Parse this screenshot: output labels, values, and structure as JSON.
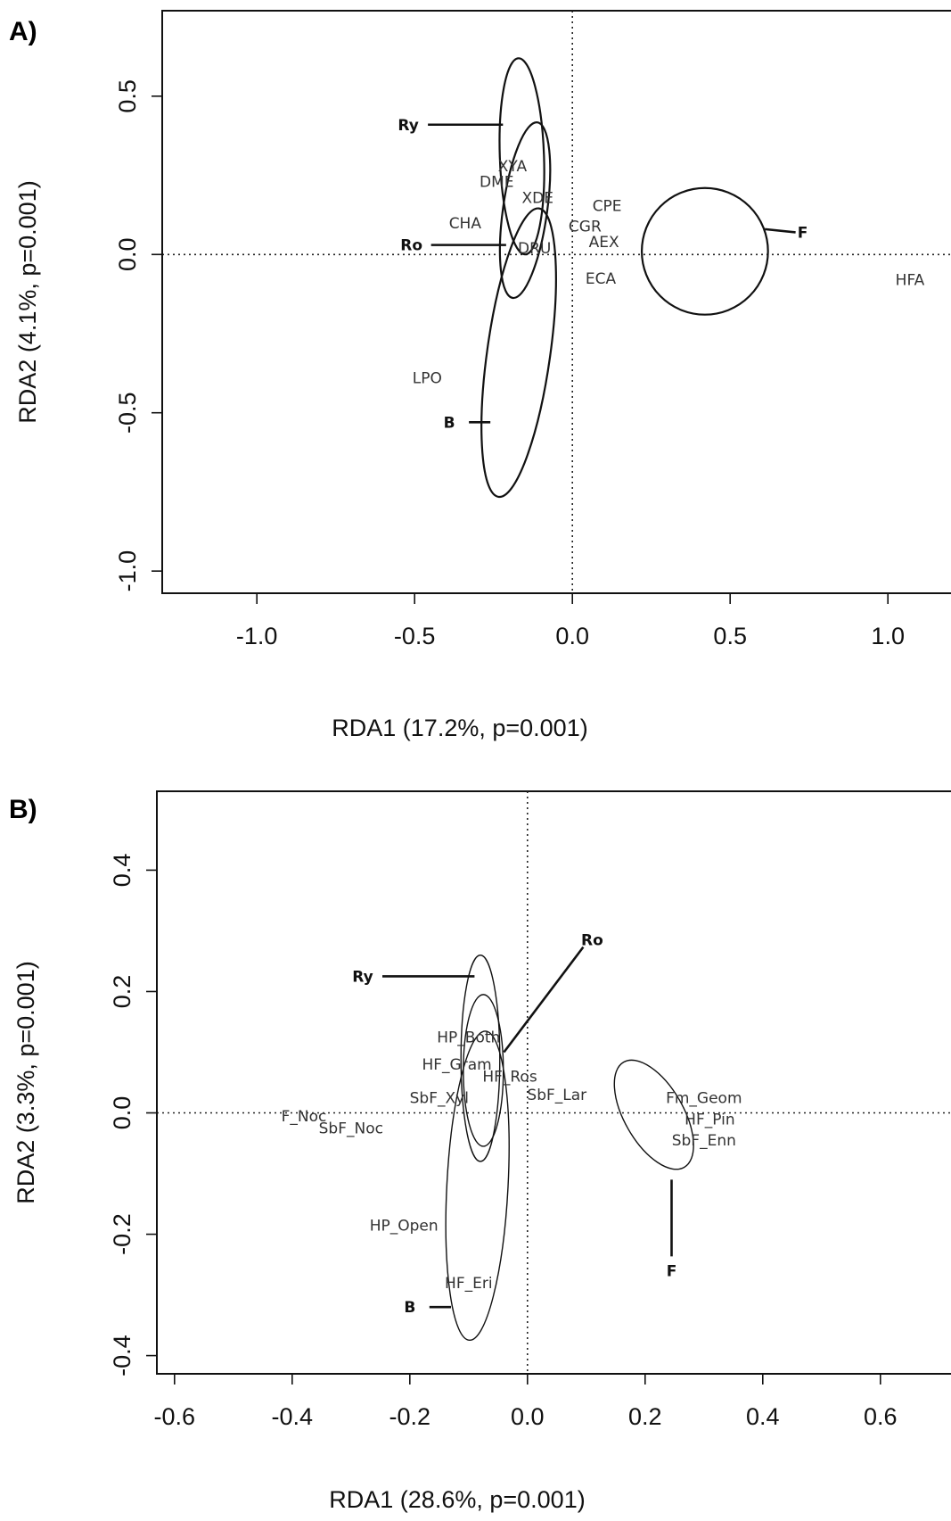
{
  "chart_data": [
    {
      "type": "scatter",
      "panel_label": "A)",
      "xlabel": "RDA1 (17.2%, p=0.001)",
      "ylabel": "RDA2 (4.1%, p=0.001)",
      "xlim": [
        -1.3,
        1.2
      ],
      "ylim": [
        -1.07,
        0.77
      ],
      "xticks": [
        -1.0,
        -0.5,
        0.0,
        0.5,
        1.0
      ],
      "xtick_labels": [
        "-1.0",
        "-0.5",
        "0.0",
        "0.5",
        "1.0"
      ],
      "yticks": [
        -1.0,
        -0.5,
        0.0,
        0.5
      ],
      "ytick_labels": [
        "-1.0",
        "-0.5",
        "0.0",
        "0.5"
      ],
      "reference_lines": {
        "x": 0,
        "y": 0,
        "style": "dotted"
      },
      "species": [
        {
          "label": "XYA",
          "x": -0.19,
          "y": 0.28
        },
        {
          "label": "DME",
          "x": -0.24,
          "y": 0.23
        },
        {
          "label": "XDE",
          "x": -0.11,
          "y": 0.18
        },
        {
          "label": "CPE",
          "x": 0.11,
          "y": 0.155
        },
        {
          "label": "CHA",
          "x": -0.34,
          "y": 0.1
        },
        {
          "label": "CGR",
          "x": 0.04,
          "y": 0.09
        },
        {
          "label": "AEX",
          "x": 0.1,
          "y": 0.04
        },
        {
          "label": "DRU",
          "x": -0.12,
          "y": 0.02
        },
        {
          "label": "ECA",
          "x": 0.09,
          "y": -0.075
        },
        {
          "label": "HFA",
          "x": 1.07,
          "y": -0.08
        },
        {
          "label": "LPO",
          "x": -0.46,
          "y": -0.39
        }
      ],
      "groups": [
        {
          "label": "Ry",
          "center": [
            -0.16,
            0.31
          ],
          "rx": 0.07,
          "ry": 0.31,
          "rotation": -2,
          "label_pos": [
            -0.52,
            0.41
          ],
          "line_end": [
            -0.22,
            0.41
          ]
        },
        {
          "label": "Ro",
          "center": [
            -0.15,
            0.14
          ],
          "rx": 0.07,
          "ry": 0.28,
          "rotation": 8,
          "label_pos": [
            -0.51,
            0.03
          ],
          "line_end": [
            -0.21,
            0.03
          ]
        },
        {
          "label": "B",
          "center": [
            -0.17,
            -0.31
          ],
          "rx": 0.1,
          "ry": 0.46,
          "rotation": 8,
          "label_pos": [
            -0.39,
            -0.53
          ],
          "line_end": [
            -0.26,
            -0.53
          ]
        },
        {
          "label": "F",
          "center": [
            0.42,
            0.01
          ],
          "rx": 0.2,
          "ry": 0.2,
          "rotation": 0,
          "label_pos": [
            0.73,
            0.07
          ],
          "line_end": [
            0.61,
            0.08
          ]
        }
      ]
    },
    {
      "type": "scatter",
      "panel_label": "B)",
      "xlabel": "RDA1 (28.6%, p=0.001)",
      "ylabel": "RDA2 (3.3%, p=0.001)",
      "xlim": [
        -0.63,
        0.72
      ],
      "ylim": [
        -0.43,
        0.53
      ],
      "xticks": [
        -0.6,
        -0.4,
        -0.2,
        0.0,
        0.2,
        0.4,
        0.6
      ],
      "xtick_labels": [
        "-0.6",
        "-0.4",
        "-0.2",
        "0.0",
        "0.2",
        "0.4",
        "0.6"
      ],
      "yticks": [
        -0.4,
        -0.2,
        0.0,
        0.2,
        0.4
      ],
      "ytick_labels": [
        "-0.4",
        "-0.2",
        "0.0",
        "0.2",
        "0.4"
      ],
      "reference_lines": {
        "x": 0,
        "y": 0,
        "style": "dotted"
      },
      "species": [
        {
          "label": "HP_Both",
          "x": -0.1,
          "y": 0.125
        },
        {
          "label": "HF_Gram",
          "x": -0.12,
          "y": 0.08
        },
        {
          "label": "HF_Ros",
          "x": -0.03,
          "y": 0.06
        },
        {
          "label": "SbF_Xyl",
          "x": -0.15,
          "y": 0.025
        },
        {
          "label": "SbF_Lar",
          "x": 0.05,
          "y": 0.03
        },
        {
          "label": "Fm_Geom",
          "x": 0.3,
          "y": 0.025
        },
        {
          "label": "F_Noc",
          "x": -0.38,
          "y": -0.005
        },
        {
          "label": "SbF_Noc",
          "x": -0.3,
          "y": -0.025
        },
        {
          "label": "HF_Pin",
          "x": 0.31,
          "y": -0.01
        },
        {
          "label": "SbF_Enn",
          "x": 0.3,
          "y": -0.045
        },
        {
          "label": "HP_Open",
          "x": -0.21,
          "y": -0.185
        },
        {
          "label": "HF_Eri",
          "x": -0.1,
          "y": -0.28
        }
      ],
      "groups": [
        {
          "label": "Ry",
          "center": [
            -0.08,
            0.09
          ],
          "rx": 0.033,
          "ry": 0.17,
          "rotation": 0,
          "label_pos": [
            -0.28,
            0.225
          ],
          "line_end": [
            -0.09,
            0.225
          ]
        },
        {
          "label": "Ro",
          "center": [
            -0.075,
            0.07
          ],
          "rx": 0.034,
          "ry": 0.125,
          "rotation": 0,
          "label_pos": [
            0.11,
            0.285
          ],
          "line_end": [
            -0.04,
            0.1
          ]
        },
        {
          "label": "B",
          "center": [
            -0.085,
            -0.12
          ],
          "rx": 0.052,
          "ry": 0.255,
          "rotation": 3,
          "label_pos": [
            -0.2,
            -0.32
          ],
          "line_end": [
            -0.13,
            -0.32
          ]
        },
        {
          "label": "F",
          "center": [
            0.215,
            -0.003
          ],
          "rx": 0.05,
          "ry": 0.1,
          "rotation": -30,
          "label_pos": [
            0.245,
            -0.26
          ],
          "line_end": [
            0.245,
            -0.11
          ]
        }
      ]
    }
  ]
}
